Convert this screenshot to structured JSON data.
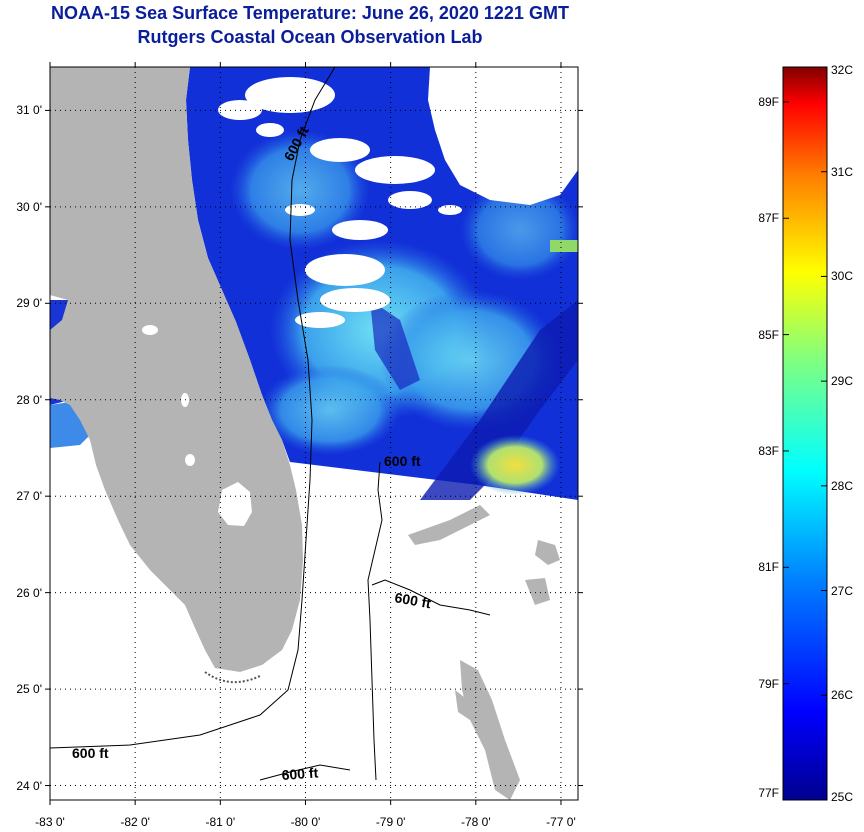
{
  "title": {
    "line1": "NOAA-15 Sea Surface Temperature:  June 26, 2020 1221 GMT",
    "line2": "Rutgers Coastal Ocean Observation Lab"
  },
  "axes": {
    "lat_ticks": [
      "31 0'",
      "30 0'",
      "29 0'",
      "28 0'",
      "27 0'",
      "26 0'",
      "25 0'",
      "24 0'"
    ],
    "lat_values": [
      31,
      30,
      29,
      28,
      27,
      26,
      25,
      24
    ],
    "lon_ticks": [
      "-83 0'",
      "-82 0'",
      "-81 0'",
      "-80 0'",
      "-79 0'",
      "-78 0'",
      "-77 0'"
    ],
    "lon_values": [
      -83,
      -82,
      -81,
      -80,
      -79,
      -78,
      -77
    ],
    "lon_range": [
      -83,
      -76.8
    ],
    "lat_range": [
      23.85,
      31.45
    ],
    "grid": "dotted"
  },
  "contour_labels": [
    "600 ft",
    "600 ft",
    "600 ft",
    "600 ft",
    "600 ft"
  ],
  "colorbar": {
    "celsius_labels": [
      "32C",
      "31C",
      "30C",
      "29C",
      "28C",
      "27C",
      "26C",
      "25C"
    ],
    "celsius_values": [
      32,
      31,
      30,
      29,
      28,
      27,
      26,
      25
    ],
    "fahrenheit_labels": [
      "89F",
      "87F",
      "85F",
      "83F",
      "81F",
      "79F",
      "77F"
    ],
    "fahrenheit_values": [
      89,
      87,
      85,
      83,
      81,
      79,
      77
    ],
    "range_c": [
      25,
      32
    ],
    "colors": [
      "#00008f",
      "#0000ff",
      "#0080ff",
      "#00ffff",
      "#80ff80",
      "#ffff00",
      "#ff8000",
      "#ff0000",
      "#800000"
    ]
  },
  "colors": {
    "title": "#0a1e9b",
    "land": "#b4b4b4",
    "cloud": "#ffffff",
    "sst_cold": "#0a1fd0",
    "sst_mid": "#5ad0f0",
    "sst_warm": "#f0e040"
  }
}
